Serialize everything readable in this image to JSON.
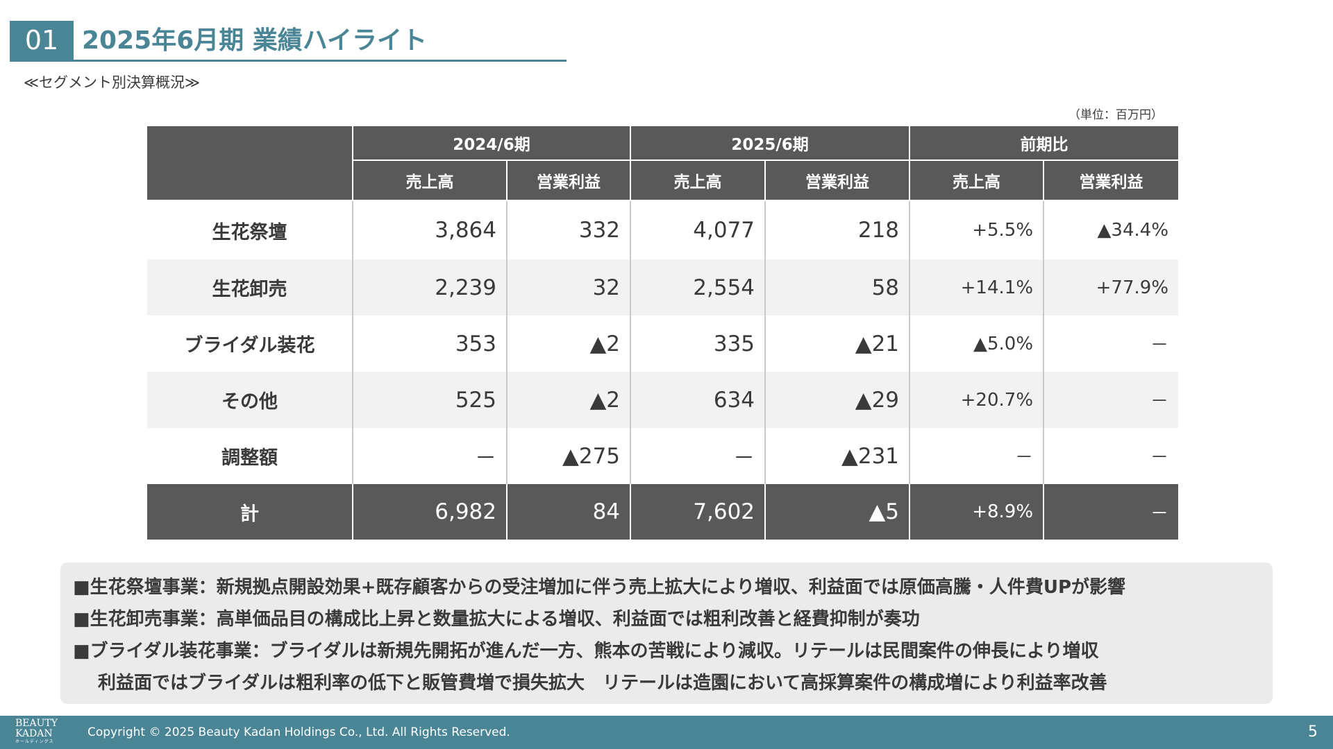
{
  "header": {
    "number": "01",
    "title": "2025年6月期 業績ハイライト",
    "subtitle": "≪セグメント別決算概況≫",
    "unit": "（単位：百万円）"
  },
  "table": {
    "period_headers": [
      "2024/6期",
      "2025/6期",
      "前期比"
    ],
    "sub_headers": [
      "売上高",
      "営業利益",
      "売上高",
      "営業利益",
      "売上高",
      "営業利益"
    ],
    "rows": [
      {
        "label": "生花祭壇",
        "values": [
          "3,864",
          "332",
          "4,077",
          "218",
          "+5.5%",
          "▲34.4%"
        ]
      },
      {
        "label": "生花卸売",
        "values": [
          "2,239",
          "32",
          "2,554",
          "58",
          "+14.1%",
          "+77.9%"
        ]
      },
      {
        "label": "ブライダル装花",
        "values": [
          "353",
          "▲2",
          "335",
          "▲21",
          "▲5.0%",
          "－"
        ]
      },
      {
        "label": "その他",
        "values": [
          "525",
          "▲2",
          "634",
          "▲29",
          "+20.7%",
          "－"
        ]
      },
      {
        "label": "調整額",
        "values": [
          "－",
          "▲275",
          "－",
          "▲231",
          "－",
          "－"
        ]
      }
    ],
    "total": {
      "label": "計",
      "values": [
        "6,982",
        "84",
        "7,602",
        "▲5",
        "+8.9%",
        "－"
      ]
    }
  },
  "notes": [
    "■生花祭壇事業：新規拠点開設効果+既存顧客からの受注増加に伴う売上拡大により増収、利益面では原価高騰・人件費UPが影響",
    "■生花卸売事業：高単価品目の構成比上昇と数量拡大による増収、利益面では粗利改善と経費抑制が奏功",
    "■ブライダル装花事業：ブライダルは新規先開拓が進んだ一方、熊本の苦戦により減収。リテールは民間案件の伸長により増収",
    "利益面ではブライダルは粗利率の低下と販管費増で損失拡大　リテールは造園において高採算案件の構成増により利益率改善"
  ],
  "footer": {
    "logo_line1": "BEAUTY",
    "logo_line2": "KADAN",
    "logo_kana": "ホールディングス",
    "copyright": "Copyright © 2025 Beauty Kadan Holdings Co., Ltd.  All Rights Reserved.",
    "page": "5"
  },
  "colors": {
    "accent": "#4a8596",
    "table_header": "#595959",
    "row_alt": "#f2f2f2",
    "notes_bg": "#ebebeb"
  }
}
